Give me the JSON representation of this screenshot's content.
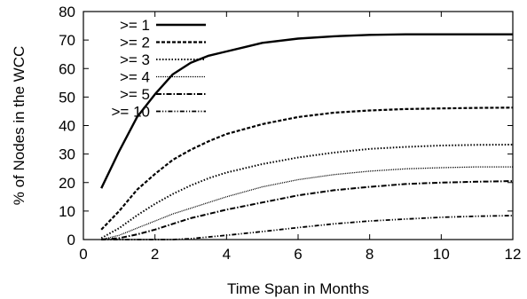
{
  "chart_data": {
    "type": "line",
    "xlabel": "Time Span in Months",
    "ylabel": "% of Nodes in the WCC",
    "xlim": [
      0,
      12
    ],
    "ylim": [
      0,
      80
    ],
    "xticks": [
      0,
      2,
      4,
      6,
      8,
      10,
      12
    ],
    "yticks": [
      0,
      10,
      20,
      30,
      40,
      50,
      60,
      70,
      80
    ],
    "grid": false,
    "legend_position": "top-left",
    "series": [
      {
        "name": ">= 1",
        "dash": "solid",
        "x": [
          0.5,
          1,
          1.5,
          2,
          2.5,
          3,
          3.5,
          4,
          4.5,
          5,
          6,
          7,
          8,
          9,
          10,
          11,
          12
        ],
        "y": [
          18,
          31,
          43,
          51,
          58,
          62,
          64.5,
          66,
          67.5,
          69,
          70.5,
          71.3,
          71.8,
          72,
          72,
          72,
          72
        ]
      },
      {
        "name": ">= 2",
        "dash": "dashed",
        "x": [
          0.5,
          1,
          1.5,
          2,
          2.5,
          3,
          3.5,
          4,
          5,
          6,
          7,
          8,
          9,
          10,
          11,
          12
        ],
        "y": [
          3.5,
          10,
          17.5,
          23,
          28,
          31.5,
          34.5,
          37,
          40.5,
          43,
          44.5,
          45.3,
          45.8,
          46,
          46.2,
          46.3
        ]
      },
      {
        "name": ">= 3",
        "dash": "dotted",
        "x": [
          0.5,
          1,
          1.5,
          2,
          2.5,
          3,
          3.5,
          4,
          5,
          6,
          7,
          8,
          9,
          10,
          11,
          12
        ],
        "y": [
          0.5,
          4,
          8.5,
          12.5,
          16,
          19,
          21.5,
          23.5,
          26.5,
          28.8,
          30.5,
          31.8,
          32.5,
          33,
          33.2,
          33.3
        ]
      },
      {
        "name": ">= 4",
        "dash": "fine",
        "x": [
          0.5,
          1,
          1.5,
          2,
          2.5,
          3,
          3.5,
          4,
          5,
          6,
          7,
          8,
          9,
          10,
          11,
          12
        ],
        "y": [
          0,
          1.5,
          4,
          6.5,
          9,
          11,
          13,
          15,
          18.5,
          21,
          22.8,
          24,
          24.8,
          25.2,
          25.5,
          25.5
        ]
      },
      {
        "name": ">= 5",
        "dash": "dashdot",
        "x": [
          0.5,
          1,
          1.5,
          2,
          2.5,
          3,
          3.5,
          4,
          5,
          6,
          7,
          8,
          9,
          10,
          11,
          12
        ],
        "y": [
          0,
          0.5,
          1.8,
          3.5,
          5.5,
          7.5,
          9,
          10.5,
          13,
          15.5,
          17.3,
          18.5,
          19.5,
          20,
          20.3,
          20.5
        ]
      },
      {
        "name": ">= 10",
        "dash": "dashdotdot",
        "x": [
          0.5,
          1,
          1.5,
          2,
          2.5,
          3,
          4,
          5,
          6,
          7,
          8,
          9,
          10,
          11,
          12
        ],
        "y": [
          0,
          0,
          0,
          0,
          0,
          0.3,
          1.5,
          2.8,
          4.2,
          5.5,
          6.5,
          7.2,
          7.8,
          8.2,
          8.4
        ]
      }
    ]
  }
}
